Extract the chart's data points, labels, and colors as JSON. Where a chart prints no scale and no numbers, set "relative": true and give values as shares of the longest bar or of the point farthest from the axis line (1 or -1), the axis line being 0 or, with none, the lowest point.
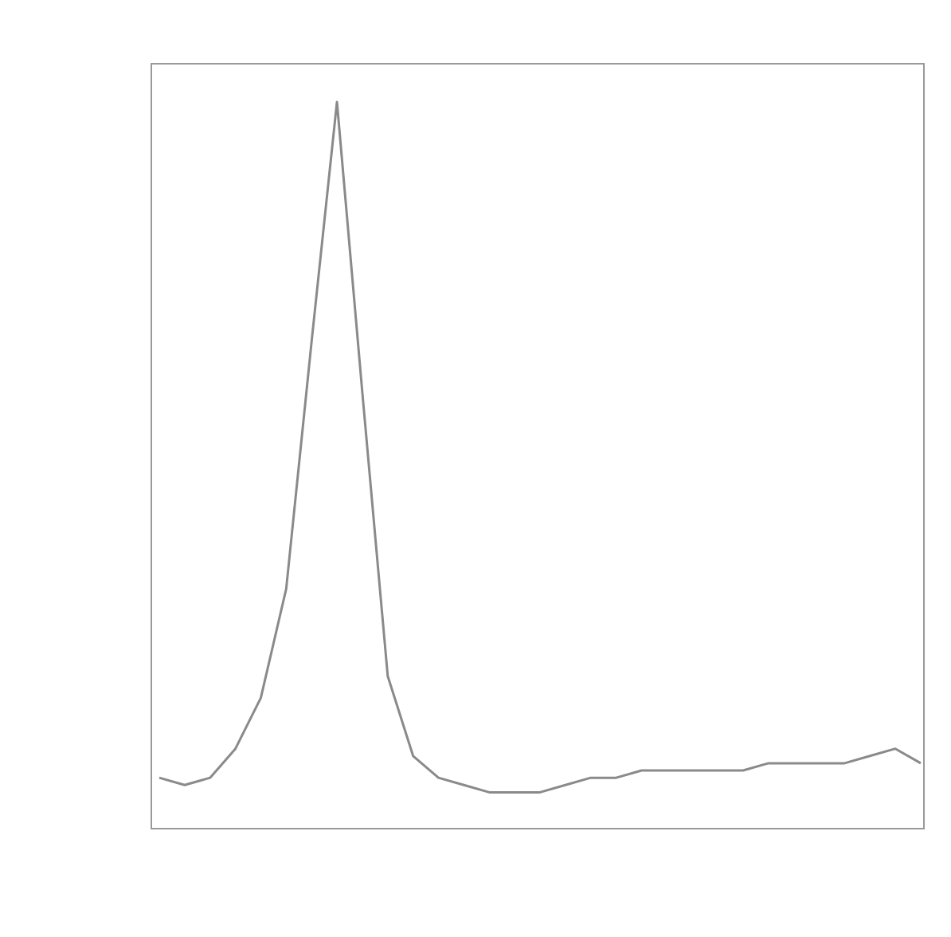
{
  "chart_data": {
    "type": "line",
    "relative": true,
    "categories": [
      null,
      null,
      null,
      null,
      null,
      null,
      null,
      null,
      null,
      null,
      null,
      null,
      null,
      null,
      null,
      null,
      null,
      null,
      null,
      null,
      null,
      null,
      null,
      null,
      null,
      null,
      null,
      null,
      null,
      null,
      null
    ],
    "series": [
      {
        "color": "#8a8a8a",
        "values": [
          0.07,
          0.06,
          0.07,
          0.11,
          0.18,
          0.33,
          0.67,
          1,
          0.6,
          0.21,
          0.1,
          0.07,
          0.06,
          0.05,
          0.05,
          0.05,
          0.06,
          0.07,
          0.07,
          0.08,
          0.08,
          0.08,
          0.08,
          0.08,
          0.09,
          0.09,
          0.09,
          0.09,
          0.1,
          0.11,
          0.09
        ]
      }
    ],
    "line_style": "solid",
    "marker": "none"
  }
}
